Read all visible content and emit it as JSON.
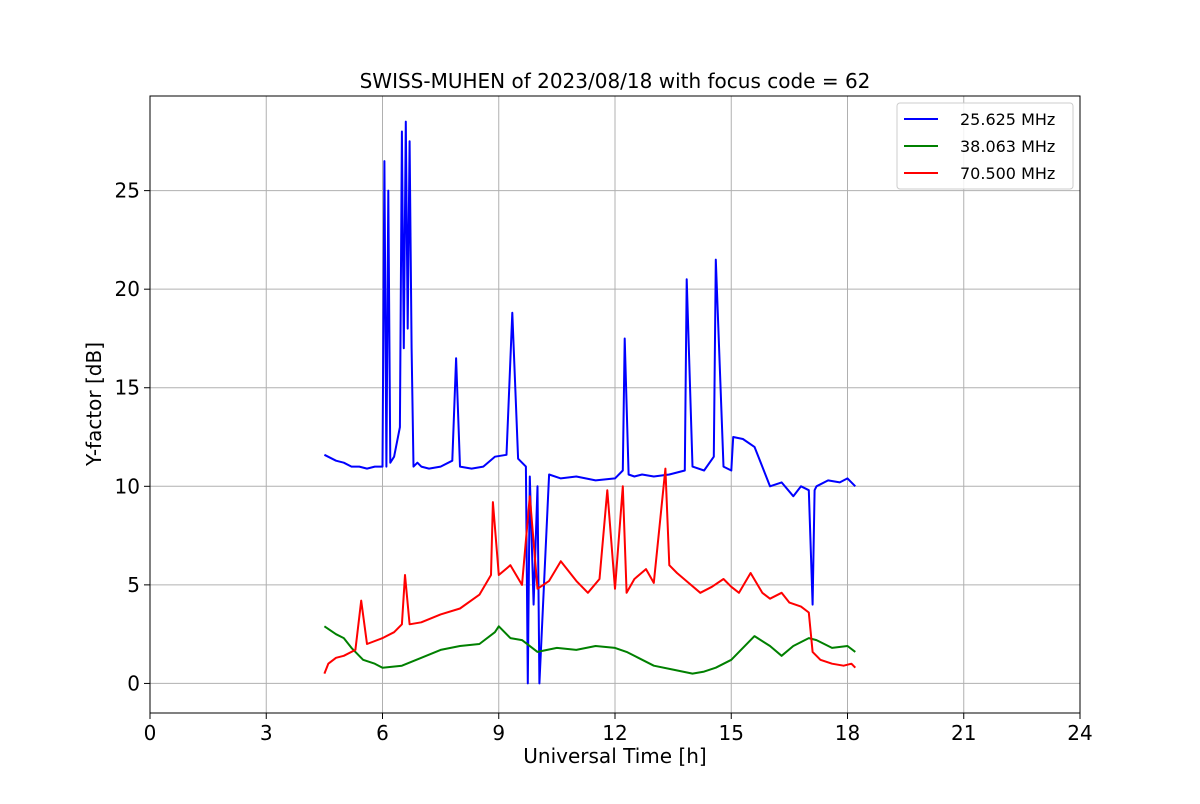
{
  "chart_data": {
    "type": "line",
    "title": "SWISS-MUHEN of 2023/08/18 with focus code = 62",
    "xlabel": "Universal Time [h]",
    "ylabel": "Y-factor [dB]",
    "xlim": [
      0,
      24
    ],
    "ylim": [
      -1.5,
      29.8
    ],
    "xticks": [
      0,
      3,
      6,
      9,
      12,
      15,
      18,
      21,
      24
    ],
    "yticks": [
      0,
      5,
      10,
      15,
      20,
      25
    ],
    "grid": true,
    "legend_position": "top-right",
    "series": [
      {
        "name": "25.625 MHz",
        "color": "#0000ff",
        "x": [
          4.5,
          4.8,
          5.0,
          5.2,
          5.4,
          5.6,
          5.8,
          6.0,
          6.05,
          6.1,
          6.15,
          6.2,
          6.3,
          6.45,
          6.5,
          6.55,
          6.6,
          6.65,
          6.7,
          6.75,
          6.8,
          6.9,
          7.0,
          7.2,
          7.5,
          7.8,
          7.9,
          8.0,
          8.3,
          8.6,
          8.9,
          9.2,
          9.35,
          9.5,
          9.7,
          9.75,
          9.8,
          9.9,
          10.0,
          10.05,
          10.3,
          10.6,
          11.0,
          11.5,
          12.0,
          12.2,
          12.25,
          12.35,
          12.5,
          12.7,
          13.0,
          13.4,
          13.8,
          13.85,
          14.0,
          14.3,
          14.55,
          14.6,
          14.8,
          15.0,
          15.05,
          15.3,
          15.6,
          15.8,
          16.0,
          16.3,
          16.6,
          16.8,
          17.0,
          17.1,
          17.15,
          17.2,
          17.5,
          17.8,
          18.0,
          18.2
        ],
        "y": [
          11.6,
          11.3,
          11.2,
          11.0,
          11.0,
          10.9,
          11.0,
          11.0,
          26.5,
          11.0,
          25.0,
          11.2,
          11.5,
          13.0,
          28.0,
          17.0,
          28.5,
          18.0,
          27.5,
          17.0,
          11.0,
          11.2,
          11.0,
          10.9,
          11.0,
          11.3,
          16.5,
          11.0,
          10.9,
          11.0,
          11.5,
          11.6,
          18.8,
          11.4,
          11.0,
          0.0,
          10.5,
          4.0,
          10.0,
          0.0,
          10.6,
          10.4,
          10.5,
          10.3,
          10.4,
          10.8,
          17.5,
          10.6,
          10.5,
          10.6,
          10.5,
          10.6,
          10.8,
          20.5,
          11.0,
          10.8,
          11.5,
          21.5,
          11.0,
          10.8,
          12.5,
          12.4,
          12.0,
          11.0,
          10.0,
          10.2,
          9.5,
          10.0,
          9.8,
          4.0,
          9.8,
          10.0,
          10.3,
          10.2,
          10.4,
          10.0
        ]
      },
      {
        "name": "38.063 MHz",
        "color": "#008000",
        "x": [
          4.5,
          4.8,
          5.0,
          5.2,
          5.5,
          5.8,
          6.0,
          6.5,
          7.0,
          7.5,
          8.0,
          8.5,
          8.9,
          9.0,
          9.3,
          9.6,
          10.0,
          10.5,
          11.0,
          11.5,
          12.0,
          12.3,
          12.6,
          13.0,
          13.5,
          14.0,
          14.3,
          14.6,
          15.0,
          15.3,
          15.6,
          16.0,
          16.3,
          16.6,
          17.0,
          17.2,
          17.6,
          18.0,
          18.2
        ],
        "y": [
          2.9,
          2.5,
          2.3,
          1.8,
          1.2,
          1.0,
          0.8,
          0.9,
          1.3,
          1.7,
          1.9,
          2.0,
          2.6,
          2.9,
          2.3,
          2.2,
          1.6,
          1.8,
          1.7,
          1.9,
          1.8,
          1.6,
          1.3,
          0.9,
          0.7,
          0.5,
          0.6,
          0.8,
          1.2,
          1.8,
          2.4,
          1.9,
          1.4,
          1.9,
          2.3,
          2.2,
          1.8,
          1.9,
          1.6
        ]
      },
      {
        "name": "70.500 MHz",
        "color": "#ff0000",
        "x": [
          4.5,
          4.6,
          4.8,
          5.0,
          5.3,
          5.45,
          5.6,
          6.0,
          6.3,
          6.5,
          6.58,
          6.7,
          7.0,
          7.5,
          8.0,
          8.5,
          8.8,
          8.85,
          9.0,
          9.3,
          9.6,
          9.8,
          10.0,
          10.3,
          10.6,
          11.0,
          11.3,
          11.6,
          11.8,
          12.0,
          12.2,
          12.3,
          12.5,
          12.8,
          13.0,
          13.3,
          13.4,
          13.6,
          13.9,
          14.2,
          14.5,
          14.8,
          15.0,
          15.2,
          15.5,
          15.8,
          16.0,
          16.3,
          16.5,
          16.8,
          17.0,
          17.1,
          17.3,
          17.6,
          17.9,
          18.1,
          18.2
        ],
        "y": [
          0.5,
          1.0,
          1.3,
          1.4,
          1.7,
          4.2,
          2.0,
          2.3,
          2.6,
          3.0,
          5.5,
          3.0,
          3.1,
          3.5,
          3.8,
          4.5,
          5.5,
          9.2,
          5.5,
          6.0,
          5.0,
          9.5,
          4.8,
          5.2,
          6.2,
          5.2,
          4.6,
          5.3,
          9.8,
          4.8,
          10.0,
          4.6,
          5.3,
          5.8,
          5.1,
          10.9,
          6.0,
          5.6,
          5.1,
          4.6,
          4.9,
          5.3,
          4.9,
          4.6,
          5.6,
          4.6,
          4.3,
          4.6,
          4.1,
          3.9,
          3.6,
          1.6,
          1.2,
          1.0,
          0.9,
          1.0,
          0.8
        ]
      }
    ]
  }
}
